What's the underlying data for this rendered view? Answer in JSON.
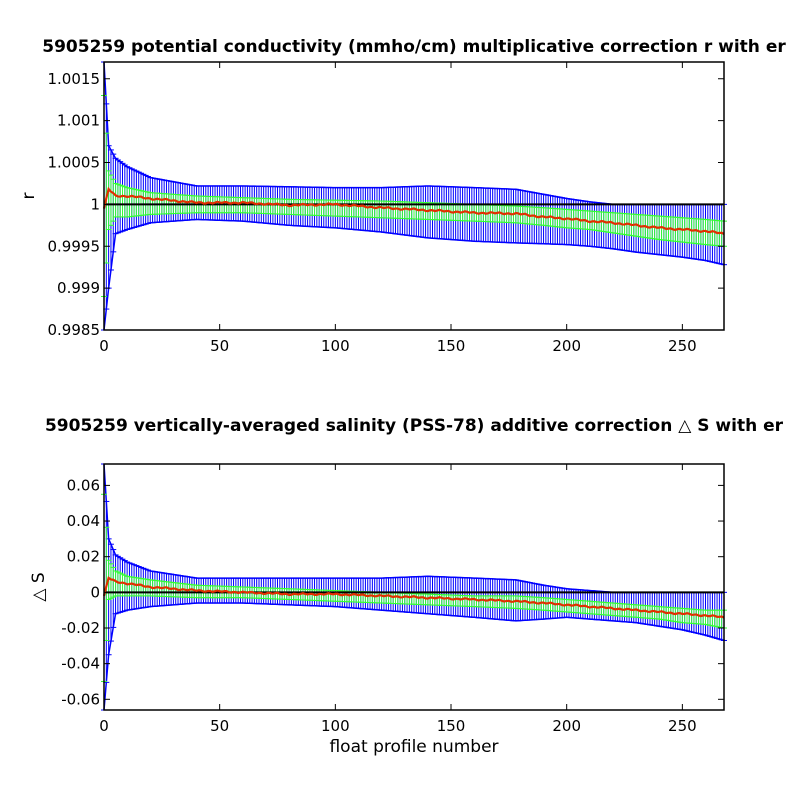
{
  "chart_data": [
    {
      "type": "line",
      "title": "5905259 potential conductivity (mmho/cm) multiplicative correction r with er",
      "xlabel": "",
      "ylabel": "r",
      "xlim": [
        0,
        268
      ],
      "ylim": [
        0.9985,
        1.0017
      ],
      "xticks": [
        "0",
        "50",
        "100",
        "150",
        "200",
        "250"
      ],
      "yticks": [
        "0.9985",
        "0.999",
        "0.9995",
        "1",
        "1.0005",
        "1.001",
        "1.0015"
      ],
      "reference_line": 1,
      "colors": {
        "reference": "#000000",
        "error_outer": "#0000ff",
        "error_inner": "#33ff33",
        "estimate": "#e03000"
      },
      "x": [
        0,
        2,
        5,
        10,
        20,
        40,
        60,
        80,
        100,
        120,
        140,
        160,
        178,
        190,
        200,
        210,
        220,
        230,
        240,
        250,
        260,
        268
      ],
      "series": [
        {
          "values": [
            0.99995,
            1.00018,
            1.0001,
            1.0001,
            1.00007,
            1.00002,
            1.00002,
            0.99999,
            1.0,
            0.99996,
            0.99993,
            0.9999,
            0.99989,
            0.99985,
            0.99983,
            0.9998,
            0.99978,
            0.99975,
            0.99972,
            0.9997,
            0.99968,
            0.99965
          ]
        },
        {
          "values": [
            1.0013,
            1.0004,
            1.00025,
            1.0002,
            1.00014,
            1.0001,
            1.00008,
            1.00006,
            1.00005,
            1.00004,
            1.00002,
            1.0,
            0.99998,
            0.99996,
            0.99994,
            0.99992,
            0.9999,
            0.99988,
            0.99986,
            0.99984,
            0.99982,
            0.9998
          ]
        },
        {
          "values": [
            0.9989,
            0.9997,
            0.99985,
            0.99985,
            0.99988,
            0.9999,
            0.9999,
            0.99988,
            0.99986,
            0.99984,
            0.99982,
            0.9998,
            0.99978,
            0.99975,
            0.99972,
            0.9997,
            0.99966,
            0.99962,
            0.99958,
            0.99955,
            0.99952,
            0.9995
          ]
        },
        {
          "values": [
            1.0017,
            1.0007,
            1.00055,
            1.00045,
            1.00032,
            1.00022,
            1.00022,
            1.00021,
            1.0002,
            1.0002,
            1.00022,
            1.0002,
            1.00018,
            1.00012,
            1.00007,
            1.00003,
            1.0,
            1.0,
            1.0,
            1.0,
            1.0,
            1.0
          ]
        },
        {
          "values": [
            0.9985,
            0.999,
            0.99965,
            0.9997,
            0.99978,
            0.99982,
            0.9998,
            0.99975,
            0.99972,
            0.99967,
            0.9996,
            0.99956,
            0.99954,
            0.99953,
            0.99952,
            0.9995,
            0.99947,
            0.99943,
            0.9994,
            0.99937,
            0.99933,
            0.99928
          ]
        }
      ]
    },
    {
      "type": "line",
      "title": "5905259 vertically-averaged salinity (PSS-78) additive correction △ S with er",
      "xlabel": "float profile number",
      "ylabel": "△ S",
      "xlim": [
        0,
        268
      ],
      "ylim": [
        -0.066,
        0.072
      ],
      "xticks": [
        "0",
        "50",
        "100",
        "150",
        "200",
        "250"
      ],
      "yticks": [
        "-0.06",
        "-0.04",
        "-0.02",
        "0",
        "0.02",
        "0.04",
        "0.06"
      ],
      "reference_line": 0,
      "colors": {
        "reference": "#000000",
        "error_outer": "#0000ff",
        "error_inner": "#33ff33",
        "estimate": "#e03000"
      },
      "x": [
        0,
        2,
        5,
        10,
        20,
        40,
        60,
        80,
        100,
        120,
        140,
        160,
        178,
        190,
        200,
        210,
        220,
        230,
        240,
        250,
        260,
        268
      ],
      "series": [
        {
          "values": [
            -0.002,
            0.008,
            0.006,
            0.005,
            0.003,
            0.001,
            0.0,
            -0.001,
            -0.001,
            -0.002,
            -0.003,
            -0.004,
            -0.005,
            -0.006,
            -0.007,
            -0.008,
            -0.009,
            -0.01,
            -0.011,
            -0.012,
            -0.013,
            -0.014
          ]
        },
        {
          "values": [
            0.055,
            0.018,
            0.012,
            0.009,
            0.007,
            0.004,
            0.003,
            0.002,
            0.001,
            0.0,
            -0.001,
            -0.002,
            -0.002,
            -0.003,
            -0.004,
            -0.005,
            -0.006,
            -0.007,
            -0.008,
            -0.009,
            -0.01,
            -0.01
          ]
        },
        {
          "values": [
            -0.05,
            -0.004,
            -0.002,
            -0.002,
            -0.002,
            -0.003,
            -0.003,
            -0.004,
            -0.005,
            -0.006,
            -0.007,
            -0.008,
            -0.009,
            -0.01,
            -0.011,
            -0.012,
            -0.013,
            -0.014,
            -0.015,
            -0.017,
            -0.018,
            -0.02
          ]
        },
        {
          "values": [
            0.072,
            0.03,
            0.021,
            0.017,
            0.012,
            0.008,
            0.008,
            0.008,
            0.008,
            0.008,
            0.009,
            0.008,
            0.007,
            0.004,
            0.002,
            0.001,
            0.0,
            0.0,
            0.0,
            0.0,
            0.0,
            0.0
          ]
        },
        {
          "values": [
            -0.066,
            -0.035,
            -0.012,
            -0.01,
            -0.008,
            -0.006,
            -0.006,
            -0.007,
            -0.008,
            -0.01,
            -0.012,
            -0.014,
            -0.016,
            -0.015,
            -0.014,
            -0.015,
            -0.016,
            -0.017,
            -0.019,
            -0.021,
            -0.024,
            -0.027
          ]
        }
      ]
    }
  ]
}
